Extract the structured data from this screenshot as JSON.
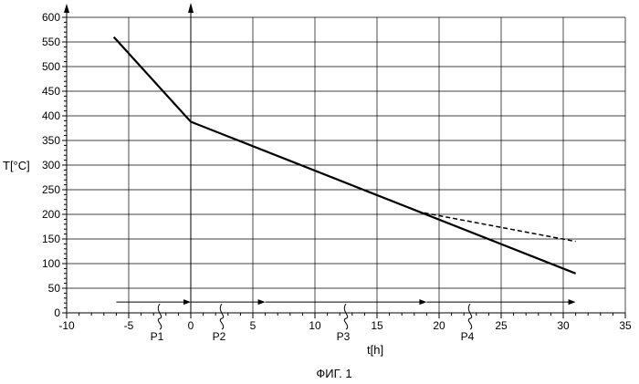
{
  "chart_data": {
    "type": "line",
    "title": "",
    "xlabel": "t[h]",
    "ylabel": "T[°C]",
    "xlim": [
      -10,
      35
    ],
    "ylim": [
      0,
      600
    ],
    "x_ticks": [
      -10,
      -5,
      0,
      5,
      10,
      15,
      20,
      25,
      30,
      35
    ],
    "x_tick_labels": [
      "-10",
      "-5",
      "0",
      "5",
      "10",
      "15",
      "20",
      "25",
      "30",
      "35"
    ],
    "y_ticks": [
      0,
      50,
      100,
      150,
      200,
      250,
      300,
      350,
      400,
      450,
      500,
      550,
      600
    ],
    "y_tick_labels": [
      "0",
      "50",
      "100",
      "150",
      "200",
      "250",
      "300",
      "350",
      "400",
      "450",
      "500",
      "550",
      "600"
    ],
    "grid": true,
    "series": [
      {
        "style": "solid",
        "points": [
          [
            -6.2,
            560
          ],
          [
            0,
            388
          ],
          [
            31,
            80
          ]
        ]
      },
      {
        "style": "dashed",
        "points": [
          [
            18.8,
            203
          ],
          [
            31,
            145
          ]
        ]
      }
    ],
    "periods": {
      "y_value": 22,
      "arrows": [
        [
          -6,
          0
        ],
        [
          0,
          6
        ],
        [
          6,
          19
        ],
        [
          19,
          31
        ]
      ],
      "labels": [
        {
          "text": "P1",
          "x": -2.5
        },
        {
          "text": "P2",
          "x": 2.5
        },
        {
          "text": "P3",
          "x": 12.5
        },
        {
          "text": "P4",
          "x": 22.5
        }
      ]
    }
  },
  "caption": "ФИГ. 1"
}
